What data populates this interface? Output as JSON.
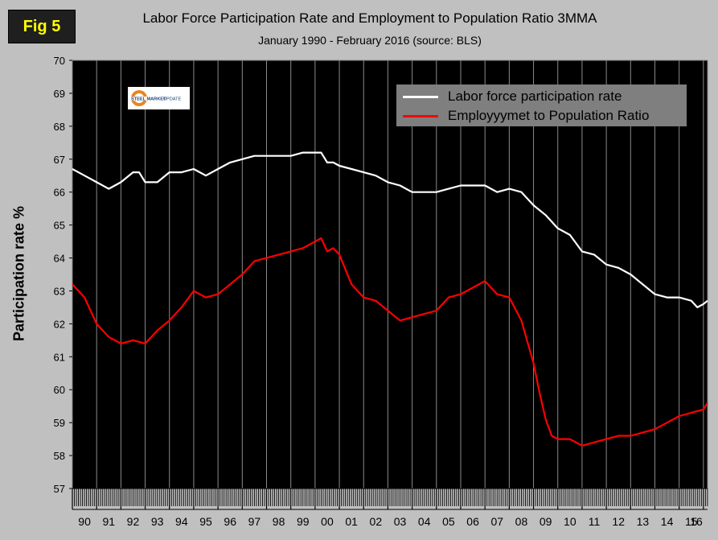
{
  "figure": {
    "badge": "Fig 5"
  },
  "chart_data": {
    "type": "line",
    "title": "Labor Force Participation Rate and Employment to Population Ratio 3MMA",
    "subtitle": "January 1990 - February 2016 (source: BLS)",
    "ylabel": "Participation rate %",
    "xlabel": "",
    "ylim": [
      57,
      70
    ],
    "yticks": [
      57,
      58,
      59,
      60,
      61,
      62,
      63,
      64,
      65,
      66,
      67,
      68,
      69,
      70
    ],
    "xlim": [
      1990.0,
      2016.17
    ],
    "categories": [
      "90",
      "91",
      "92",
      "93",
      "94",
      "95",
      "96",
      "97",
      "98",
      "99",
      "00",
      "01",
      "02",
      "03",
      "04",
      "05",
      "06",
      "07",
      "08",
      "09",
      "10",
      "11",
      "12",
      "13",
      "14",
      "15",
      "16"
    ],
    "grid": "vertical",
    "legend_position": "top-right",
    "series": [
      {
        "name": "Labor force participation rate",
        "color": "#ffffff",
        "x": [
          1990.0,
          1990.5,
          1991.0,
          1991.5,
          1992.0,
          1992.5,
          1992.75,
          1993.0,
          1993.5,
          1994.0,
          1994.5,
          1995.0,
          1995.5,
          1996.0,
          1996.5,
          1997.0,
          1997.5,
          1998.0,
          1998.5,
          1999.0,
          1999.5,
          2000.0,
          2000.25,
          2000.5,
          2000.75,
          2001.0,
          2001.5,
          2002.0,
          2002.5,
          2003.0,
          2003.5,
          2004.0,
          2004.5,
          2005.0,
          2005.5,
          2006.0,
          2006.5,
          2007.0,
          2007.5,
          2008.0,
          2008.5,
          2009.0,
          2009.5,
          2010.0,
          2010.5,
          2011.0,
          2011.5,
          2012.0,
          2012.5,
          2013.0,
          2013.5,
          2014.0,
          2014.5,
          2015.0,
          2015.5,
          2015.75,
          2016.0,
          2016.17
        ],
        "y": [
          66.7,
          66.5,
          66.3,
          66.1,
          66.3,
          66.6,
          66.6,
          66.3,
          66.3,
          66.6,
          66.6,
          66.7,
          66.5,
          66.7,
          66.9,
          67.0,
          67.1,
          67.1,
          67.1,
          67.1,
          67.2,
          67.2,
          67.2,
          66.9,
          66.9,
          66.8,
          66.7,
          66.6,
          66.5,
          66.3,
          66.2,
          66.0,
          66.0,
          66.0,
          66.1,
          66.2,
          66.2,
          66.2,
          66.0,
          66.1,
          66.0,
          65.6,
          65.3,
          64.9,
          64.7,
          64.2,
          64.1,
          63.8,
          63.7,
          63.5,
          63.2,
          62.9,
          62.8,
          62.8,
          62.7,
          62.5,
          62.6,
          62.7
        ]
      },
      {
        "name": "Employyymet to Population Ratio",
        "color": "#ff0000",
        "x": [
          1990.0,
          1990.5,
          1991.0,
          1991.5,
          1992.0,
          1992.5,
          1993.0,
          1993.5,
          1994.0,
          1994.5,
          1995.0,
          1995.5,
          1996.0,
          1996.5,
          1997.0,
          1997.5,
          1998.0,
          1998.5,
          1999.0,
          1999.5,
          2000.0,
          2000.25,
          2000.5,
          2000.75,
          2001.0,
          2001.5,
          2002.0,
          2002.5,
          2003.0,
          2003.5,
          2004.0,
          2004.5,
          2005.0,
          2005.5,
          2006.0,
          2006.5,
          2007.0,
          2007.5,
          2008.0,
          2008.5,
          2009.0,
          2009.25,
          2009.5,
          2009.75,
          2010.0,
          2010.5,
          2011.0,
          2011.5,
          2012.0,
          2012.5,
          2013.0,
          2013.5,
          2014.0,
          2014.5,
          2015.0,
          2015.5,
          2016.0,
          2016.17
        ],
        "y": [
          63.2,
          62.8,
          62.0,
          61.6,
          61.4,
          61.5,
          61.4,
          61.8,
          62.1,
          62.5,
          63.0,
          62.8,
          62.9,
          63.2,
          63.5,
          63.9,
          64.0,
          64.1,
          64.2,
          64.3,
          64.5,
          64.6,
          64.2,
          64.3,
          64.1,
          63.2,
          62.8,
          62.7,
          62.4,
          62.1,
          62.2,
          62.3,
          62.4,
          62.8,
          62.9,
          63.1,
          63.3,
          62.9,
          62.8,
          62.1,
          60.8,
          59.9,
          59.1,
          58.6,
          58.5,
          58.5,
          58.3,
          58.4,
          58.5,
          58.6,
          58.6,
          58.7,
          58.8,
          59.0,
          59.2,
          59.3,
          59.4,
          59.6
        ]
      }
    ]
  }
}
